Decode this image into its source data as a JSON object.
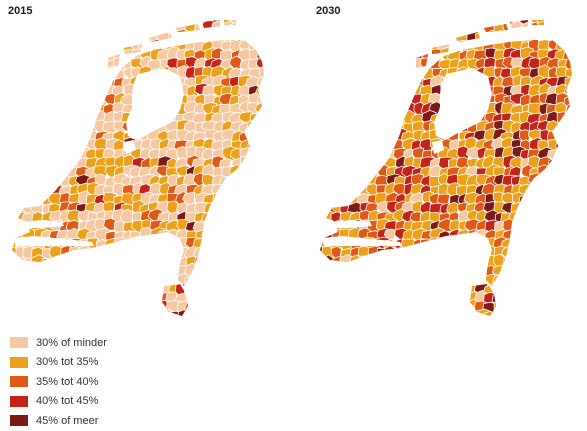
{
  "maps": [
    {
      "year_label": "2015",
      "class_shares": [
        0.52,
        0.33,
        0.08,
        0.04,
        0.03
      ]
    },
    {
      "year_label": "2030",
      "class_shares": [
        0.08,
        0.42,
        0.24,
        0.16,
        0.1
      ]
    }
  ],
  "legend": {
    "items": [
      {
        "label": "30% of minder",
        "color": "#f6c8a2"
      },
      {
        "label": "30% tot 35%",
        "color": "#eca11a"
      },
      {
        "label": "35% tot 40%",
        "color": "#e05a17"
      },
      {
        "label": "40% tot 45%",
        "color": "#c42319"
      },
      {
        "label": "45% of meer",
        "color": "#7c1a18"
      }
    ]
  },
  "colors": {
    "border": "#ffffff"
  }
}
